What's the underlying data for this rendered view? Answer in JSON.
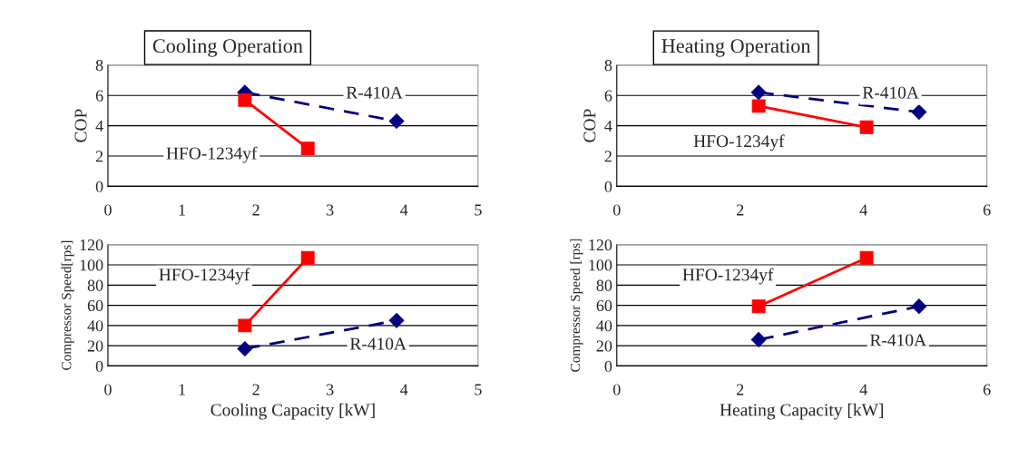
{
  "chart_data": [
    {
      "type": "line",
      "title": "Cooling Operation",
      "ylabel": "COP",
      "xlim": [
        0,
        5
      ],
      "xticks": [
        0,
        1,
        2,
        3,
        4,
        5
      ],
      "ylim": [
        0,
        8
      ],
      "yticks": [
        0,
        2,
        4,
        6,
        8
      ],
      "grid": "y",
      "series": [
        {
          "name": "R-410A",
          "color": "#000080",
          "marker": "diamond",
          "line_style": "dashed",
          "x": [
            1.85,
            3.9
          ],
          "values": [
            6.2,
            4.3
          ]
        },
        {
          "name": "HFO-1234yf",
          "color": "#ff0000",
          "marker": "square",
          "line_style": "solid",
          "x": [
            1.85,
            2.7
          ],
          "values": [
            5.7,
            2.5
          ]
        }
      ]
    },
    {
      "type": "line",
      "title": "Heating Operation",
      "ylabel": "COP",
      "xlim": [
        0,
        6
      ],
      "xticks": [
        0,
        2,
        4,
        6
      ],
      "ylim": [
        0,
        8
      ],
      "yticks": [
        0,
        2,
        4,
        6,
        8
      ],
      "grid": "y",
      "series": [
        {
          "name": "R-410A",
          "color": "#000080",
          "marker": "diamond",
          "line_style": "dashed",
          "x": [
            2.3,
            4.9
          ],
          "values": [
            6.2,
            4.9
          ]
        },
        {
          "name": "HFO-1234yf",
          "color": "#ff0000",
          "marker": "square",
          "line_style": "solid",
          "x": [
            2.3,
            4.05
          ],
          "values": [
            5.3,
            3.9
          ]
        }
      ]
    },
    {
      "type": "line",
      "xlabel": "Cooling Capacity [kW]",
      "ylabel": "Compressor Speed[rps]",
      "xlim": [
        0,
        5
      ],
      "xticks": [
        0,
        1,
        2,
        3,
        4,
        5
      ],
      "ylim": [
        0,
        120
      ],
      "yticks": [
        0,
        20,
        40,
        60,
        80,
        100,
        120
      ],
      "grid": "y",
      "series": [
        {
          "name": "HFO-1234yf",
          "color": "#ff0000",
          "marker": "square",
          "line_style": "solid",
          "x": [
            1.85,
            2.7
          ],
          "values": [
            40,
            107
          ]
        },
        {
          "name": "R-410A",
          "color": "#000080",
          "marker": "diamond",
          "line_style": "dashed",
          "x": [
            1.85,
            3.9
          ],
          "values": [
            17,
            45
          ]
        }
      ]
    },
    {
      "type": "line",
      "xlabel": "Heating Capacity [kW]",
      "ylabel": "Compressor Speed [rps]",
      "xlim": [
        0,
        6
      ],
      "xticks": [
        0,
        2,
        4,
        6
      ],
      "ylim": [
        0,
        120
      ],
      "yticks": [
        0,
        20,
        40,
        60,
        80,
        100,
        120
      ],
      "grid": "y",
      "series": [
        {
          "name": "HFO-1234yf",
          "color": "#ff0000",
          "marker": "square",
          "line_style": "solid",
          "x": [
            2.3,
            4.05
          ],
          "values": [
            59,
            107
          ]
        },
        {
          "name": "R-410A",
          "color": "#000080",
          "marker": "diamond",
          "line_style": "dashed",
          "x": [
            2.3,
            4.9
          ],
          "values": [
            26,
            59
          ]
        }
      ]
    }
  ]
}
